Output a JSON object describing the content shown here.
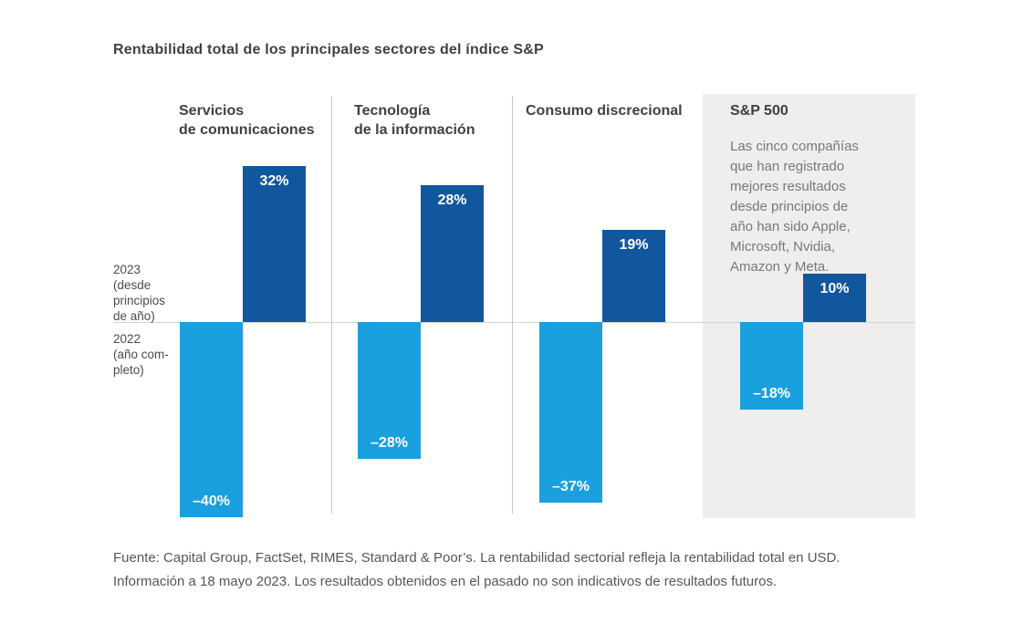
{
  "title": "Rentabilidad total de los principales sectores del índice S&P",
  "sections": [
    {
      "header": "Servicios\nde comunicaciones"
    },
    {
      "header": "Tecnología\nde la información"
    },
    {
      "header": "Consumo discrecional"
    },
    {
      "header": "S&P 500"
    }
  ],
  "sp500_note": "Las cinco compañías\nque han registrado\nmejores resultados\ndesde principios de\naño han sido Apple,\nMicrosoft, Nvidia,\nAmazon y Meta.",
  "axis": {
    "label_2023": "2023\n(desde\nprincipios\nde año)",
    "label_2022": "2022\n(año com-\npleto)"
  },
  "footer": {
    "line1": "Fuente: Capital Group, FactSet, RIMES, Standard & Poor’s. La rentabilidad sectorial refleja la rentabilidad total en USD.",
    "line2": "Información a 18 mayo 2023. Los resultados obtenidos en el pasado no son indicativos de resultados futuros."
  },
  "colors": {
    "positive_bar": "#11579d",
    "negative_bar": "#1a9fdf",
    "panel_background": "#efeeec",
    "zero_line": "#d2d2d0",
    "divider": "#c6c6c4",
    "heading_text": "#414042",
    "note_text": "#77787b",
    "footer_text": "#55565a"
  },
  "chart_data": {
    "type": "bar",
    "title": "Rentabilidad total de los principales sectores del índice S&P",
    "categories": [
      "Servicios de comunicaciones",
      "Tecnología de la información",
      "Consumo discrecional",
      "S&P 500"
    ],
    "series": [
      {
        "name": "2023 (desde principios de año)",
        "values": [
          32,
          28,
          19,
          10
        ],
        "labels": [
          "32%",
          "28%",
          "19%",
          "10%"
        ],
        "color": "#11579d"
      },
      {
        "name": "2022 (año completo)",
        "values": [
          -40,
          -28,
          -37,
          -18
        ],
        "labels": [
          "–40%",
          "–28%",
          "–37%",
          "–18%"
        ],
        "color": "#1a9fdf"
      }
    ],
    "unit": "%",
    "baseline": 0,
    "ylim": [
      -45,
      38
    ],
    "grid": false,
    "legend_position": "left-axis",
    "annotation": "Las cinco compañías que han registrado mejores resultados desde principios de año han sido Apple, Microsoft, Nvidia, Amazon y Meta.",
    "source_note": "Fuente: Capital Group, FactSet, RIMES, Standard & Poor’s. La rentabilidad sectorial refleja la rentabilidad total en USD. Información a 18 mayo 2023. Los resultados obtenidos en el pasado no son indicativos de resultados futuros."
  }
}
